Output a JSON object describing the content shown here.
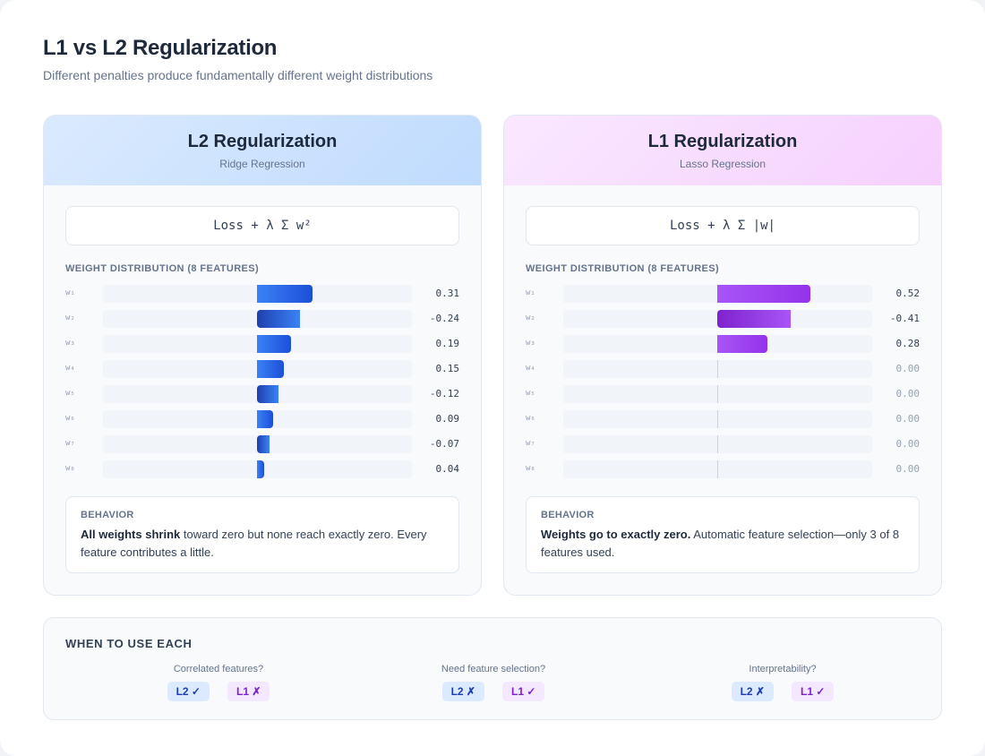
{
  "header": {
    "title": "L1 vs L2 Regularization",
    "subtitle": "Different penalties produce fundamentally different weight distributions"
  },
  "panels": {
    "l2": {
      "title": "L2 Regularization",
      "subtitle": "Ridge Regression",
      "formula": "Loss + λ Σ w²",
      "dist_label": "WEIGHT DISTRIBUTION (8 FEATURES)",
      "weights": [
        {
          "label": "w₁",
          "value": 0.31,
          "display": "0.31"
        },
        {
          "label": "w₂",
          "value": -0.24,
          "display": "-0.24"
        },
        {
          "label": "w₃",
          "value": 0.19,
          "display": "0.19"
        },
        {
          "label": "w₄",
          "value": 0.15,
          "display": "0.15"
        },
        {
          "label": "w₅",
          "value": -0.12,
          "display": "-0.12"
        },
        {
          "label": "w₆",
          "value": 0.09,
          "display": "0.09"
        },
        {
          "label": "w₇",
          "value": -0.07,
          "display": "-0.07"
        },
        {
          "label": "w₈",
          "value": 0.04,
          "display": "0.04"
        }
      ],
      "behavior_label": "BEHAVIOR",
      "behavior_bold": "All weights shrink",
      "behavior_text": " toward zero but none reach exactly zero. Every feature contributes a little."
    },
    "l1": {
      "title": "L1 Regularization",
      "subtitle": "Lasso Regression",
      "formula": "Loss + λ Σ |w|",
      "dist_label": "WEIGHT DISTRIBUTION (8 FEATURES)",
      "weights": [
        {
          "label": "w₁",
          "value": 0.52,
          "display": "0.52"
        },
        {
          "label": "w₂",
          "value": -0.41,
          "display": "-0.41"
        },
        {
          "label": "w₃",
          "value": 0.28,
          "display": "0.28"
        },
        {
          "label": "w₄",
          "value": 0.0,
          "display": "0.00"
        },
        {
          "label": "w₅",
          "value": 0.0,
          "display": "0.00"
        },
        {
          "label": "w₆",
          "value": 0.0,
          "display": "0.00"
        },
        {
          "label": "w₇",
          "value": 0.0,
          "display": "0.00"
        },
        {
          "label": "w₈",
          "value": 0.0,
          "display": "0.00"
        }
      ],
      "behavior_label": "BEHAVIOR",
      "behavior_bold": "Weights go to exactly zero.",
      "behavior_text": " Automatic feature selection—only 3 of 8 features used."
    }
  },
  "when_to_use": {
    "title": "WHEN TO USE EACH",
    "criteria": [
      {
        "label": "Correlated features?",
        "l2": "L2 ✓",
        "l1": "L1 ✗"
      },
      {
        "label": "Need feature selection?",
        "l2": "L2 ✗",
        "l1": "L1 ✓"
      },
      {
        "label": "Interpretability?",
        "l2": "L2 ✗",
        "l1": "L1 ✓"
      }
    ]
  },
  "colors": {
    "l2_accent": "#2563eb",
    "l1_accent": "#9333ea"
  }
}
